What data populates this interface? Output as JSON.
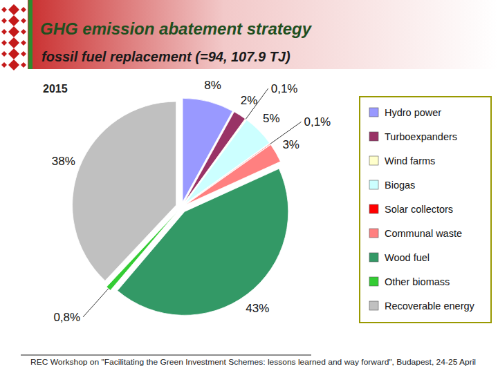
{
  "chart_data": {
    "type": "pie",
    "title": "GHG emission abatement strategy",
    "subtitle": "fossil fuel replacement (=94, 107.9 TJ)",
    "annotation": "2015",
    "footer": "REC Workshop on \"Facilitating the Green Investment Schemes: lessons learned and way forward\", Budapest, 24-25 April",
    "categories": [
      "Hydro power",
      "Turboexpanders",
      "Wind farms",
      "Biogas",
      "Solar collectors",
      "Communal waste",
      "Wood fuel",
      "Other biomass",
      "Recoverable energy"
    ],
    "values": [
      8,
      2,
      0.1,
      5,
      0.1,
      3,
      43,
      0.8,
      38
    ],
    "value_labels": [
      "8%",
      "2%",
      "0,1%",
      "5%",
      "0,1%",
      "3%",
      "43%",
      "0,8%",
      "38%"
    ],
    "colors": [
      "#9999ff",
      "#993366",
      "#ffffcc",
      "#ccffff",
      "#ff0000",
      "#ff8080",
      "#339966",
      "#33cc33",
      "#c0c0c0"
    ],
    "legend": "right",
    "data_labels": true
  }
}
